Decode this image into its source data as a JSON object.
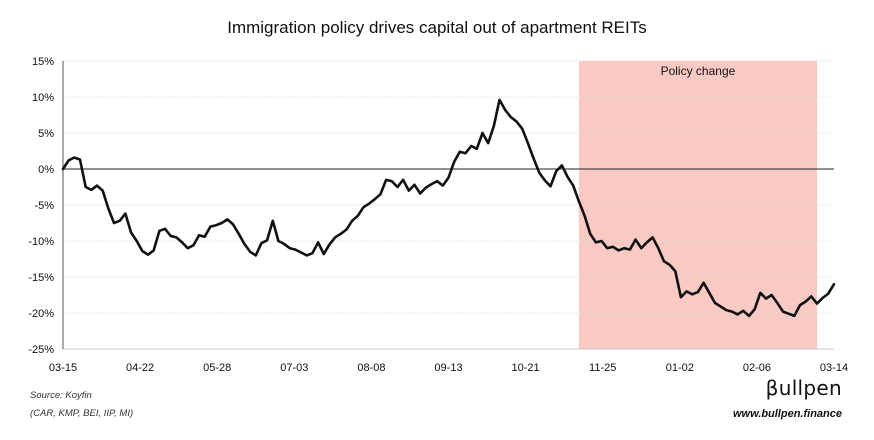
{
  "chart_data": {
    "type": "line",
    "title": "Immigration policy drives capital out of apartment REITs",
    "xlabel": "",
    "ylabel": "",
    "ylim": [
      -25,
      15
    ],
    "yticks": [
      15,
      10,
      5,
      0,
      -5,
      -10,
      -15,
      -20,
      -25
    ],
    "ytick_labels": [
      "15%",
      "10%",
      "5%",
      "0%",
      "-5%",
      "-10%",
      "-15%",
      "-20%",
      "-25%"
    ],
    "xtick_labels": [
      "03-15",
      "04-22",
      "05-28",
      "07-03",
      "08-08",
      "09-13",
      "10-21",
      "11-25",
      "01-02",
      "02-06",
      "03-14"
    ],
    "grid": "horizontal",
    "legend": "none",
    "annotation": {
      "label": "Policy change",
      "start_index": 91,
      "end_index": 133,
      "color": "#f9c9c4"
    },
    "line_color": "#111111",
    "series": [
      {
        "values": [
          0.0,
          1.2,
          1.6,
          1.3,
          -2.5,
          -2.9,
          -2.3,
          -3.0,
          -5.5,
          -7.5,
          -7.2,
          -6.2,
          -8.8,
          -10.0,
          -11.4,
          -11.9,
          -11.3,
          -8.6,
          -8.3,
          -9.3,
          -9.5,
          -10.2,
          -11.0,
          -10.6,
          -9.2,
          -9.4,
          -8.0,
          -7.8,
          -7.5,
          -7.0,
          -7.7,
          -9.0,
          -10.4,
          -11.5,
          -12.0,
          -10.3,
          -9.9,
          -7.2,
          -10.0,
          -10.4,
          -11.0,
          -11.2,
          -11.6,
          -12.0,
          -11.7,
          -10.2,
          -11.8,
          -10.5,
          -9.5,
          -9.0,
          -8.4,
          -7.2,
          -6.5,
          -5.3,
          -4.8,
          -4.2,
          -3.5,
          -1.5,
          -1.7,
          -2.5,
          -1.5,
          -3.0,
          -2.2,
          -3.4,
          -2.6,
          -2.1,
          -1.7,
          -2.3,
          -1.2,
          1.0,
          2.4,
          2.2,
          3.2,
          2.8,
          5.0,
          3.6,
          6.0,
          9.6,
          8.2,
          7.2,
          6.6,
          5.6,
          3.6,
          1.5,
          -0.5,
          -1.6,
          -2.4,
          -0.3,
          0.5,
          -1.1,
          -2.3,
          -4.5,
          -6.5,
          -9.0,
          -10.2,
          -10.0,
          -11.0,
          -10.8,
          -11.3,
          -11.0,
          -11.2,
          -9.8,
          -11.0,
          -10.2,
          -9.5,
          -11.0,
          -12.8,
          -13.3,
          -14.2,
          -17.8,
          -17.0,
          -17.4,
          -17.1,
          -15.8,
          -17.2,
          -18.6,
          -19.1,
          -19.6,
          -19.8,
          -20.2,
          -19.7,
          -20.4,
          -19.5,
          -17.2,
          -18.0,
          -17.5,
          -18.6,
          -19.8,
          -20.1,
          -20.4,
          -18.9,
          -18.4,
          -17.7,
          -18.7,
          -17.9,
          -17.3,
          -16.0
        ]
      }
    ]
  },
  "footer": {
    "source": "Source: Koyfin",
    "tickers": "(CAR, KMP, BEI, IIP, MI)"
  },
  "brand": {
    "logo_text": "βullpen",
    "url": "www.bullpen.finance"
  }
}
